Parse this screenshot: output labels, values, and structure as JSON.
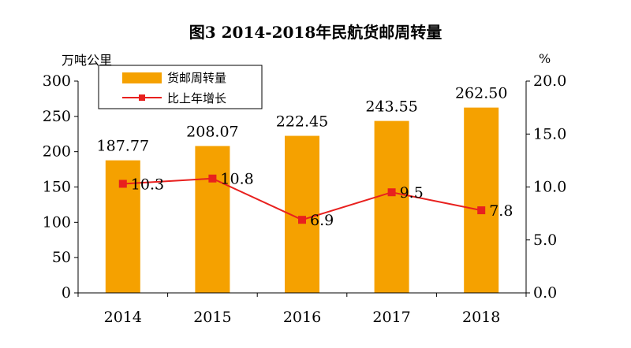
{
  "chart_data": {
    "type": "bar",
    "title": "图3 2014-2018年民航货邮周转量",
    "categories": [
      "2014",
      "2015",
      "2016",
      "2017",
      "2018"
    ],
    "series": [
      {
        "name": "货邮周转量",
        "type": "bar",
        "axis": "left",
        "values": [
          187.77,
          208.07,
          222.45,
          243.55,
          262.5
        ],
        "labels": [
          "187.77",
          "208.07",
          "222.45",
          "243.55",
          "262.50"
        ],
        "color": "#F5A100"
      },
      {
        "name": "比上年增长",
        "type": "line",
        "axis": "right",
        "values": [
          10.3,
          10.8,
          6.9,
          9.5,
          7.8
        ],
        "labels": [
          "10.3",
          "10.8",
          "6.9",
          "9.5",
          "7.8"
        ],
        "color": "#E8201E"
      }
    ],
    "left_axis": {
      "label": "万吨公里",
      "range": [
        0,
        300
      ],
      "ticks": [
        "0",
        "50",
        "100",
        "150",
        "200",
        "250",
        "300"
      ]
    },
    "right_axis": {
      "label": "%",
      "range": [
        0,
        20
      ],
      "ticks": [
        "0.0",
        "5.0",
        "10.0",
        "15.0",
        "20.0"
      ]
    },
    "grid": false,
    "legend": "top-left"
  }
}
